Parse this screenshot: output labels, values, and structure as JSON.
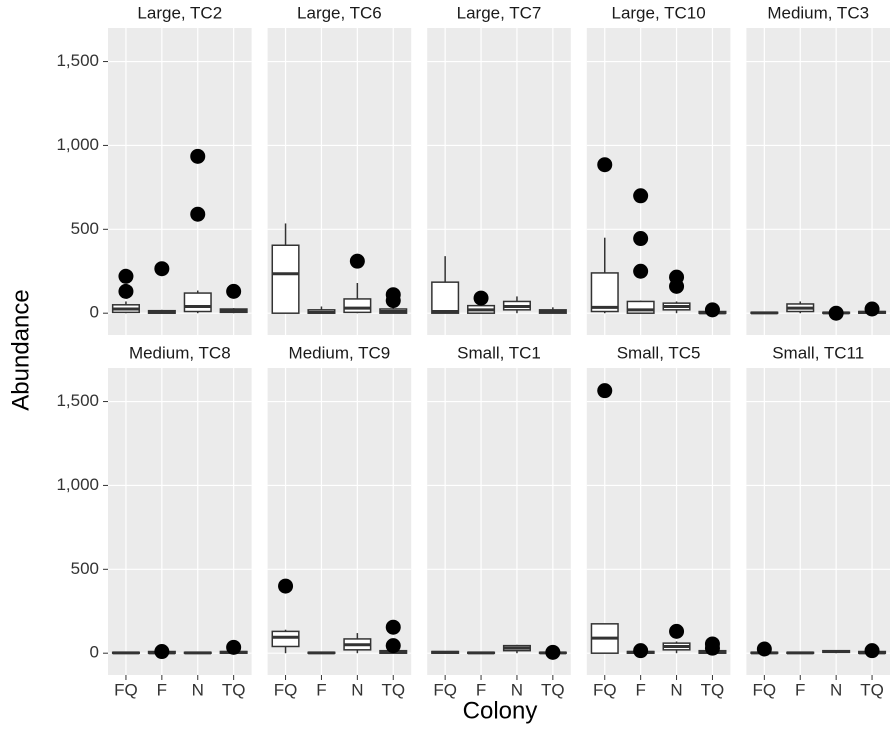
{
  "chart_data": {
    "type": "box",
    "x_label": "Colony",
    "y_label": "Abundance",
    "categories": [
      "FQ",
      "F",
      "N",
      "TQ"
    ],
    "ylim": [
      -130,
      1700
    ],
    "yticks": [
      0,
      500,
      {
        "value": 1000,
        "label": "1,000"
      },
      {
        "value": 1500,
        "label": "1,500"
      }
    ],
    "grid": true,
    "box_color": "#ffffff",
    "line_color": "#333333",
    "outlier_color": "#000000",
    "panel_color": "#ebebeb",
    "facets": [
      {
        "title": "Large, TC2",
        "boxes": [
          {
            "min": 0,
            "q1": 5,
            "median": 25,
            "q3": 50,
            "max": 70,
            "outliers": [
              220,
              130
            ]
          },
          {
            "min": 0,
            "q1": 0,
            "median": 5,
            "q3": 15,
            "max": 20,
            "outliers": [
              265
            ]
          },
          {
            "min": 0,
            "q1": 10,
            "median": 40,
            "q3": 120,
            "max": 135,
            "outliers": [
              590,
              935
            ]
          },
          {
            "min": 0,
            "q1": 5,
            "median": 15,
            "q3": 25,
            "max": 30,
            "outliers": [
              130
            ]
          }
        ]
      },
      {
        "title": "Large, TC6",
        "boxes": [
          {
            "min": 0,
            "q1": 0,
            "median": 235,
            "q3": 405,
            "max": 535,
            "outliers": []
          },
          {
            "min": 0,
            "q1": 0,
            "median": 5,
            "q3": 20,
            "max": 40,
            "outliers": []
          },
          {
            "min": 0,
            "q1": 5,
            "median": 30,
            "q3": 85,
            "max": 180,
            "outliers": [
              310
            ]
          },
          {
            "min": 0,
            "q1": 0,
            "median": 10,
            "q3": 25,
            "max": 50,
            "outliers": [
              110,
              75
            ]
          }
        ]
      },
      {
        "title": "Large, TC7",
        "boxes": [
          {
            "min": 0,
            "q1": 0,
            "median": 10,
            "q3": 185,
            "max": 340,
            "outliers": []
          },
          {
            "min": 0,
            "q1": 0,
            "median": 20,
            "q3": 45,
            "max": 60,
            "outliers": [
              90
            ]
          },
          {
            "min": 0,
            "q1": 20,
            "median": 40,
            "q3": 70,
            "max": 100,
            "outliers": []
          },
          {
            "min": 0,
            "q1": 0,
            "median": 10,
            "q3": 20,
            "max": 35,
            "outliers": []
          }
        ]
      },
      {
        "title": "Large, TC10",
        "boxes": [
          {
            "min": 0,
            "q1": 10,
            "median": 35,
            "q3": 240,
            "max": 450,
            "outliers": [
              885
            ]
          },
          {
            "min": 0,
            "q1": 0,
            "median": 20,
            "q3": 70,
            "max": 75,
            "outliers": [
              700,
              445,
              250
            ]
          },
          {
            "min": 0,
            "q1": 20,
            "median": 40,
            "q3": 60,
            "max": 70,
            "outliers": [
              215,
              160
            ]
          },
          {
            "min": 0,
            "q1": 0,
            "median": 2,
            "q3": 10,
            "max": 12,
            "outliers": [
              20
            ]
          }
        ]
      },
      {
        "title": "Medium, TC3",
        "boxes": [
          {
            "min": 0,
            "q1": 0,
            "median": 2,
            "q3": 5,
            "max": 6,
            "outliers": []
          },
          {
            "min": 0,
            "q1": 10,
            "median": 30,
            "q3": 55,
            "max": 70,
            "outliers": []
          },
          {
            "min": 0,
            "q1": 0,
            "median": 2,
            "q3": 5,
            "max": 6,
            "outliers": [
              0
            ]
          },
          {
            "min": 0,
            "q1": 0,
            "median": 5,
            "q3": 10,
            "max": 12,
            "outliers": [
              25
            ]
          }
        ]
      },
      {
        "title": "Medium, TC8",
        "boxes": [
          {
            "min": 0,
            "q1": 0,
            "median": 2,
            "q3": 5,
            "max": 6,
            "outliers": []
          },
          {
            "min": 0,
            "q1": 0,
            "median": 2,
            "q3": 10,
            "max": 12,
            "outliers": [
              10
            ]
          },
          {
            "min": 0,
            "q1": 0,
            "median": 2,
            "q3": 5,
            "max": 6,
            "outliers": []
          },
          {
            "min": 0,
            "q1": 0,
            "median": 5,
            "q3": 10,
            "max": 12,
            "outliers": [
              35
            ]
          }
        ]
      },
      {
        "title": "Medium, TC9",
        "boxes": [
          {
            "min": 0,
            "q1": 40,
            "median": 95,
            "q3": 130,
            "max": 140,
            "outliers": [
              400
            ]
          },
          {
            "min": 0,
            "q1": 0,
            "median": 2,
            "q3": 5,
            "max": 6,
            "outliers": []
          },
          {
            "min": 0,
            "q1": 20,
            "median": 50,
            "q3": 85,
            "max": 120,
            "outliers": []
          },
          {
            "min": 0,
            "q1": 0,
            "median": 5,
            "q3": 15,
            "max": 20,
            "outliers": [
              155,
              45
            ]
          }
        ]
      },
      {
        "title": "Small, TC1",
        "boxes": [
          {
            "min": 0,
            "q1": 0,
            "median": 5,
            "q3": 10,
            "max": 12,
            "outliers": []
          },
          {
            "min": 0,
            "q1": 0,
            "median": 2,
            "q3": 5,
            "max": 6,
            "outliers": []
          },
          {
            "min": 0,
            "q1": 15,
            "median": 30,
            "q3": 45,
            "max": 50,
            "outliers": []
          },
          {
            "min": 0,
            "q1": 0,
            "median": 2,
            "q3": 5,
            "max": 6,
            "outliers": [
              5
            ]
          }
        ]
      },
      {
        "title": "Small, TC5",
        "boxes": [
          {
            "min": 0,
            "q1": 0,
            "median": 90,
            "q3": 175,
            "max": 175,
            "outliers": [
              1565
            ]
          },
          {
            "min": 0,
            "q1": 0,
            "median": 5,
            "q3": 10,
            "max": 12,
            "outliers": [
              15
            ]
          },
          {
            "min": 0,
            "q1": 20,
            "median": 40,
            "q3": 60,
            "max": 70,
            "outliers": [
              130
            ]
          },
          {
            "min": 0,
            "q1": 0,
            "median": 5,
            "q3": 15,
            "max": 20,
            "outliers": [
              55,
              30
            ]
          }
        ]
      },
      {
        "title": "Small, TC11",
        "boxes": [
          {
            "min": 0,
            "q1": 0,
            "median": 2,
            "q3": 5,
            "max": 6,
            "outliers": [
              25
            ]
          },
          {
            "min": 0,
            "q1": 0,
            "median": 2,
            "q3": 5,
            "max": 6,
            "outliers": []
          },
          {
            "min": 0,
            "q1": 5,
            "median": 10,
            "q3": 15,
            "max": 18,
            "outliers": []
          },
          {
            "min": 0,
            "q1": 0,
            "median": 2,
            "q3": 10,
            "max": 12,
            "outliers": [
              15
            ]
          }
        ]
      }
    ]
  }
}
